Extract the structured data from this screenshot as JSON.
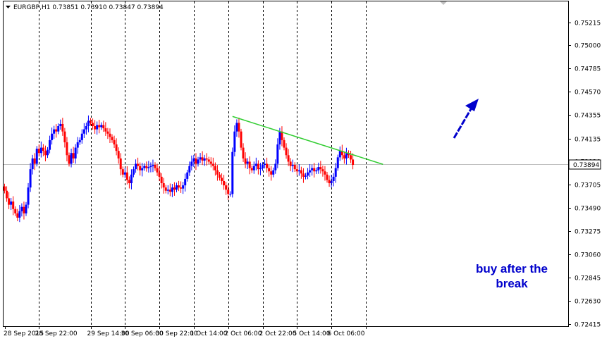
{
  "chart_data": {
    "type": "candlestick",
    "symbol": "EURGBP,H1",
    "ohlc": {
      "open": "0.73851",
      "high": "0.73910",
      "low": "0.73847",
      "close": "0.73894"
    },
    "current_price": "0.73894",
    "ylim": [
      0.724,
      0.754
    ],
    "y_ticks": [
      {
        "value": 0.75215,
        "label": "0.75215"
      },
      {
        "value": 0.75,
        "label": "0.75000"
      },
      {
        "value": 0.74785,
        "label": "0.74785"
      },
      {
        "value": 0.7457,
        "label": "0.74570"
      },
      {
        "value": 0.74355,
        "label": "0.74355"
      },
      {
        "value": 0.74135,
        "label": "0.74135"
      },
      {
        "value": 0.7392,
        "label": "0.73920"
      },
      {
        "value": 0.73705,
        "label": "0.73705"
      },
      {
        "value": 0.7349,
        "label": "0.73490"
      },
      {
        "value": 0.73275,
        "label": "0.73275"
      },
      {
        "value": 0.7306,
        "label": "0.73060"
      },
      {
        "value": 0.72845,
        "label": "0.72845"
      },
      {
        "value": 0.7263,
        "label": "0.72630"
      },
      {
        "value": 0.72415,
        "label": "0.72415"
      }
    ],
    "x_ticks": [
      {
        "index": 0,
        "label": "28 Sep 2015",
        "grid": false
      },
      {
        "index": 16,
        "label": "28 Sep 22:00",
        "grid": true
      },
      {
        "index": 40,
        "label": "29 Sep 14:00",
        "grid": true
      },
      {
        "index": 56,
        "label": "30 Sep 06:00",
        "grid": true
      },
      {
        "index": 72,
        "label": "30 Sep 22:00",
        "grid": true
      },
      {
        "index": 88,
        "label": "1 Oct 14:00",
        "grid": true
      },
      {
        "index": 104,
        "label": "2 Oct 06:00",
        "grid": true
      },
      {
        "index": 120,
        "label": "2 Oct 22:00",
        "grid": true
      },
      {
        "index": 136,
        "label": "5 Oct 14:00",
        "grid": true
      },
      {
        "index": 152,
        "label": "6 Oct 06:00",
        "grid": true
      },
      {
        "index": 168,
        "label": "",
        "grid": true
      }
    ],
    "candles_close": [
      0.7365,
      0.7358,
      0.7352,
      0.7355,
      0.7348,
      0.7344,
      0.734,
      0.7346,
      0.735,
      0.7344,
      0.7352,
      0.7368,
      0.7385,
      0.7395,
      0.739,
      0.7404,
      0.74,
      0.7405,
      0.7402,
      0.7398,
      0.7403,
      0.7412,
      0.7418,
      0.7422,
      0.742,
      0.7425,
      0.7427,
      0.742,
      0.741,
      0.7398,
      0.739,
      0.74,
      0.7395,
      0.7405,
      0.741,
      0.7412,
      0.7418,
      0.7422,
      0.7425,
      0.743,
      0.7428,
      0.7425,
      0.7422,
      0.7426,
      0.7424,
      0.7426,
      0.7423,
      0.742,
      0.7418,
      0.7415,
      0.7412,
      0.7408,
      0.7402,
      0.7395,
      0.7385,
      0.738,
      0.7382,
      0.7375,
      0.7372,
      0.738,
      0.7385,
      0.739,
      0.7388,
      0.7384,
      0.7386,
      0.7388,
      0.7386,
      0.7387,
      0.7388,
      0.7389,
      0.7386,
      0.7382,
      0.7378,
      0.7372,
      0.7368,
      0.7365,
      0.7366,
      0.7364,
      0.7368,
      0.7366,
      0.737,
      0.7368,
      0.7367,
      0.737,
      0.7376,
      0.7382,
      0.7388,
      0.7392,
      0.7395,
      0.739,
      0.7394,
      0.7396,
      0.7393,
      0.7395,
      0.7394,
      0.7392,
      0.739,
      0.7388,
      0.7384,
      0.738,
      0.7377,
      0.7374,
      0.737,
      0.7366,
      0.7362,
      0.7362,
      0.7401,
      0.742,
      0.7428,
      0.742,
      0.7405,
      0.7395,
      0.739,
      0.7392,
      0.7386,
      0.7384,
      0.7388,
      0.739,
      0.7385,
      0.7386,
      0.7389,
      0.739,
      0.7386,
      0.7383,
      0.738,
      0.7384,
      0.739,
      0.7408,
      0.742,
      0.7412,
      0.7405,
      0.7398,
      0.7392,
      0.7388,
      0.7389,
      0.7385,
      0.7383,
      0.7384,
      0.7381,
      0.7378,
      0.7379,
      0.7382,
      0.7384,
      0.7386,
      0.7383,
      0.7384,
      0.7387,
      0.7385,
      0.7383,
      0.738,
      0.7375,
      0.7372,
      0.7374,
      0.7378,
      0.7386,
      0.7396,
      0.7402,
      0.7398,
      0.7395,
      0.74,
      0.7398,
      0.7394,
      0.7389
    ],
    "trendline": {
      "start_index": 106,
      "start_price": 0.7434,
      "end_index": 176,
      "end_price": 0.73895
    },
    "annotation": "buy after the break",
    "colors": {
      "bull": "#0000ff",
      "bear": "#ff0000",
      "trendline": "#32cd32",
      "annotation": "#0000cc",
      "grid": "#000000",
      "price_line": "#c0c0c0"
    }
  }
}
